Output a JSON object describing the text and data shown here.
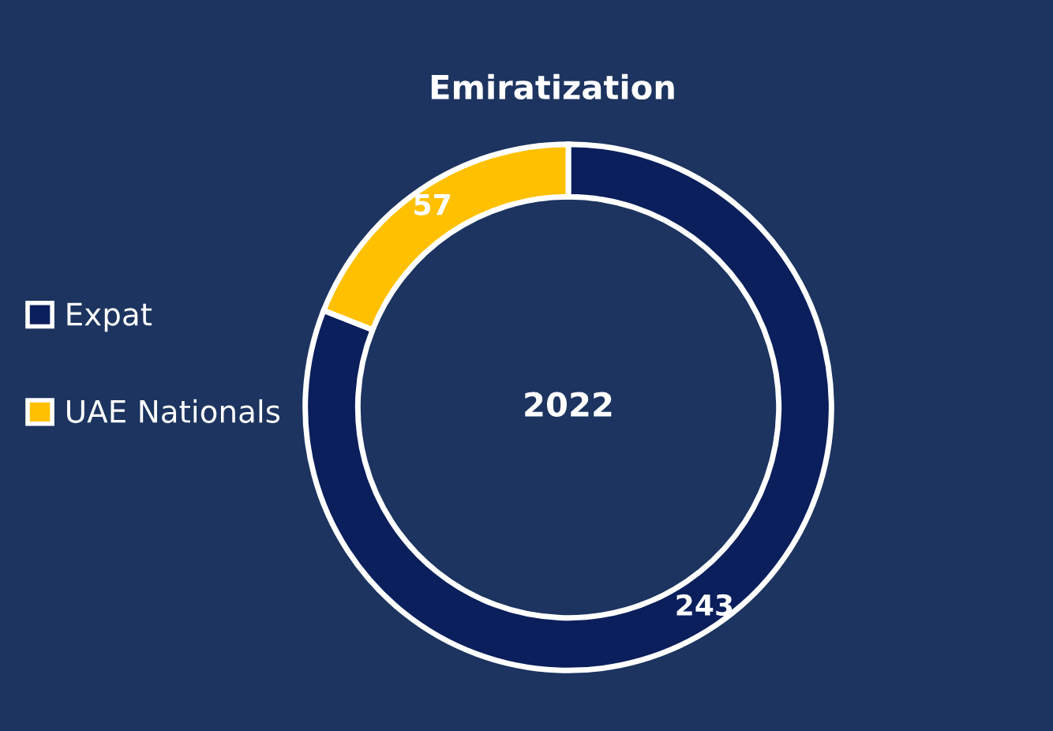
{
  "chart_data": {
    "type": "donut",
    "title": "Emiratization",
    "categories": [
      "Expat",
      "UAE Nationals"
    ],
    "values": [
      243,
      57
    ],
    "colors": [
      "#0b1f5c",
      "#ffc000"
    ],
    "data_labels": true,
    "legend": "left",
    "annotations": [
      "2022"
    ]
  }
}
